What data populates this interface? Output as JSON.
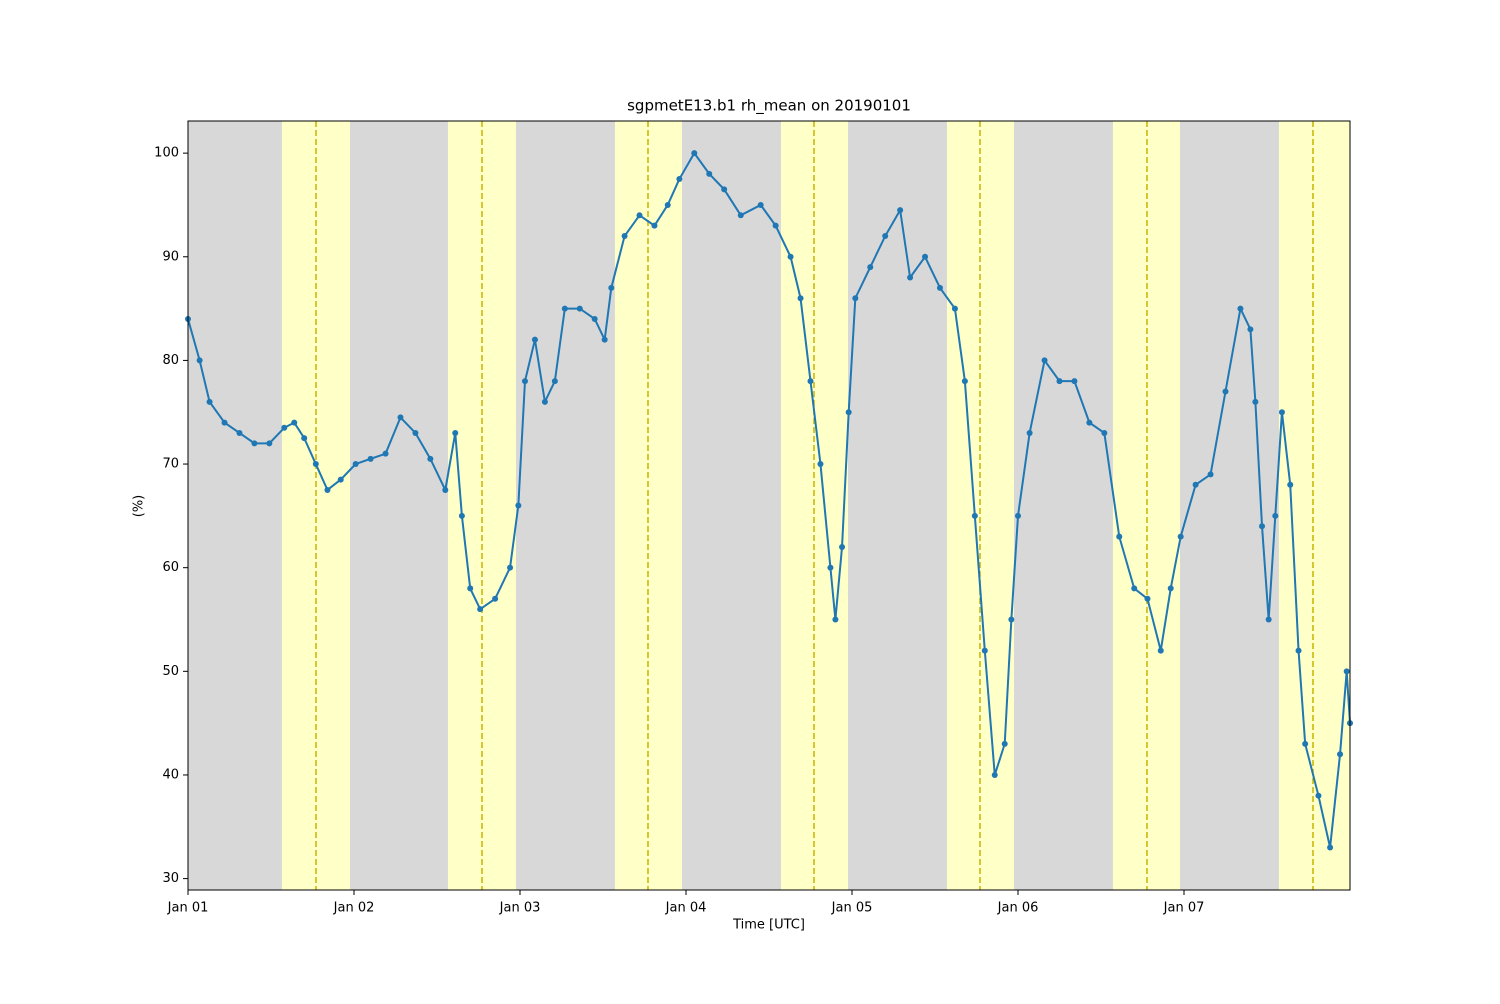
{
  "chart_data": {
    "type": "line",
    "title": "sgpmetE13.b1 rh_mean on 20190101",
    "x_label": "Time [UTC]",
    "y_label": "(%)",
    "x": [
      0,
      0.07,
      0.13,
      0.22,
      0.31,
      0.4,
      0.49,
      0.58,
      0.64,
      0.7,
      0.77,
      0.84,
      0.92,
      1.01,
      1.1,
      1.19,
      1.28,
      1.37,
      1.46,
      1.55,
      1.61,
      1.65,
      1.7,
      1.76,
      1.85,
      1.94,
      1.99,
      2.03,
      2.09,
      2.15,
      2.21,
      2.27,
      2.36,
      2.45,
      2.51,
      2.55,
      2.63,
      2.72,
      2.81,
      2.89,
      2.96,
      3.05,
      3.14,
      3.23,
      3.33,
      3.45,
      3.54,
      3.63,
      3.69,
      3.75,
      3.81,
      3.87,
      3.9,
      3.94,
      3.98,
      4.02,
      4.11,
      4.2,
      4.29,
      4.35,
      4.44,
      4.53,
      4.62,
      4.68,
      4.74,
      4.8,
      4.86,
      4.92,
      4.96,
      5.0,
      5.07,
      5.16,
      5.25,
      5.34,
      5.43,
      5.52,
      5.61,
      5.7,
      5.78,
      5.86,
      5.92,
      5.98,
      6.07,
      6.16,
      6.25,
      6.34,
      6.4,
      6.43,
      6.47,
      6.51,
      6.55,
      6.59,
      6.64,
      6.69,
      6.73,
      6.81,
      6.88,
      6.94,
      6.98,
      7.0
    ],
    "values": [
      84,
      80,
      76,
      74,
      73,
      72,
      72,
      73.5,
      74,
      72.5,
      70,
      67.5,
      68.5,
      70,
      70.5,
      71,
      74.5,
      73,
      70.5,
      67.5,
      73,
      65,
      58,
      56,
      57,
      60,
      66,
      78,
      82,
      76,
      78,
      85,
      85,
      84,
      82,
      87,
      92,
      94,
      93,
      95,
      97.5,
      100,
      98,
      96.5,
      94,
      95,
      93,
      90,
      86,
      78,
      70,
      60,
      55,
      62,
      75,
      86,
      89,
      92,
      94.5,
      88,
      90,
      87,
      85,
      78,
      65,
      52,
      40,
      43,
      55,
      65,
      73,
      80,
      78,
      78,
      74,
      73,
      63,
      58,
      57,
      52,
      58,
      63,
      68,
      69,
      77,
      85,
      83,
      76,
      64,
      55,
      65,
      75,
      68,
      52,
      43,
      38,
      33,
      42,
      50,
      45
    ],
    "color": "#1f77b4",
    "xlim": [
      0,
      7
    ],
    "ylim": [
      28.9,
      103.1
    ],
    "xticks": [
      {
        "value": 0,
        "label": "Jan 01"
      },
      {
        "value": 1,
        "label": "Jan 02"
      },
      {
        "value": 2,
        "label": "Jan 03"
      },
      {
        "value": 3,
        "label": "Jan 04"
      },
      {
        "value": 4,
        "label": "Jan 05"
      },
      {
        "value": 5,
        "label": "Jan 06"
      },
      {
        "value": 6,
        "label": "Jan 07"
      }
    ],
    "yticks": [
      30,
      40,
      50,
      60,
      70,
      80,
      90,
      100
    ],
    "background_color": "#d8d8d8",
    "span_color": "#ffffc8",
    "vline_color": "#c8b400",
    "spans": [
      [
        0.566,
        0.976
      ],
      [
        1.566,
        1.976
      ],
      [
        2.572,
        2.976
      ],
      [
        3.572,
        3.976
      ],
      [
        4.572,
        4.976
      ],
      [
        5.572,
        5.976
      ],
      [
        6.572,
        7.0
      ]
    ],
    "vlines": [
      0.771,
      1.771,
      2.771,
      3.771,
      4.771,
      5.777,
      6.777
    ]
  }
}
